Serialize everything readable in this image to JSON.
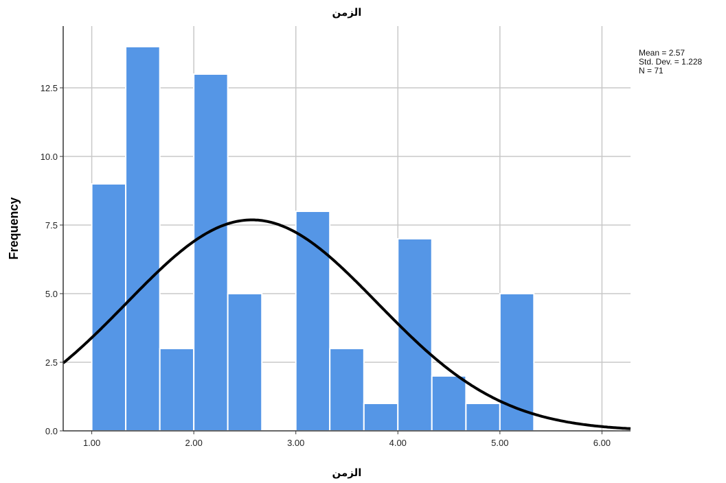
{
  "chart_data": {
    "type": "bar",
    "title": "الزمن",
    "xlabel": "الزمن",
    "ylabel": "Frequency",
    "bins": [
      {
        "x0": 1.0,
        "x1": 1.333,
        "count": 9
      },
      {
        "x0": 1.333,
        "x1": 1.667,
        "count": 14
      },
      {
        "x0": 1.667,
        "x1": 2.0,
        "count": 3
      },
      {
        "x0": 2.0,
        "x1": 2.333,
        "count": 13
      },
      {
        "x0": 2.333,
        "x1": 2.667,
        "count": 5
      },
      {
        "x0": 2.667,
        "x1": 3.0,
        "count": 0
      },
      {
        "x0": 3.0,
        "x1": 3.333,
        "count": 8
      },
      {
        "x0": 3.333,
        "x1": 3.667,
        "count": 3
      },
      {
        "x0": 3.667,
        "x1": 4.0,
        "count": 1
      },
      {
        "x0": 4.0,
        "x1": 4.333,
        "count": 7
      },
      {
        "x0": 4.333,
        "x1": 4.667,
        "count": 2
      },
      {
        "x0": 4.667,
        "x1": 5.0,
        "count": 1
      },
      {
        "x0": 5.0,
        "x1": 5.333,
        "count": 5
      }
    ],
    "xlim": [
      0.72,
      6.28
    ],
    "ylim": [
      0,
      14.75
    ],
    "x_ticks": [
      1.0,
      2.0,
      3.0,
      4.0,
      5.0,
      6.0
    ],
    "x_tick_labels": [
      "1.00",
      "2.00",
      "3.00",
      "4.00",
      "5.00",
      "6.00"
    ],
    "y_ticks": [
      0,
      2.5,
      5,
      7.5,
      10,
      12.5
    ],
    "y_tick_labels": [
      "0.0",
      "2.5",
      "5.0",
      "7.5",
      "10.0",
      "12.5"
    ],
    "normal_curve": {
      "mean": 2.57,
      "sd": 1.228,
      "n": 71,
      "bin_width": 0.3333
    },
    "stats_text": [
      "Mean = 2.57",
      "Std. Dev. = 1.228",
      "N = 71"
    ],
    "grid": true,
    "colors": {
      "bar": "#5596e6",
      "bar_edge": "#ffffff",
      "curve": "#000000",
      "grid": "#c8c8c8"
    }
  }
}
